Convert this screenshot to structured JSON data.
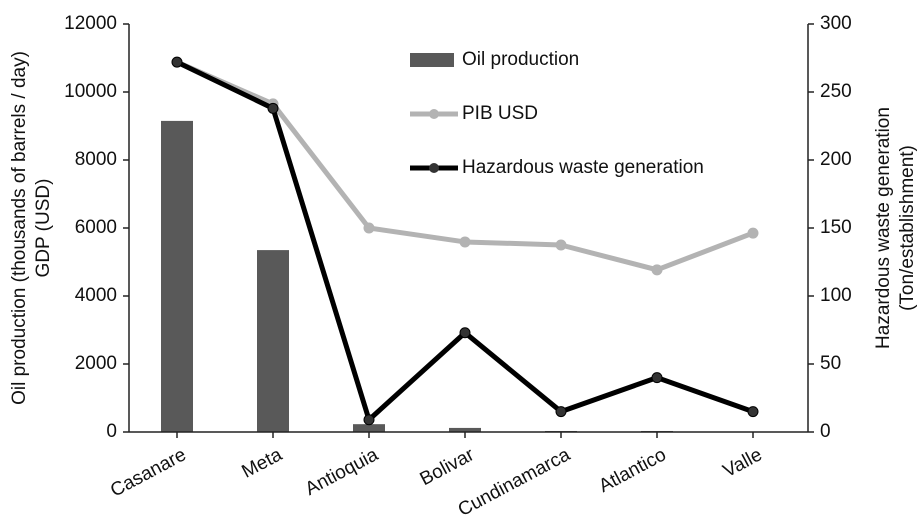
{
  "chart_data": {
    "type": "bar_line",
    "categories": [
      "Casanare",
      "Meta",
      "Antioquia",
      "Bolivar",
      "Cundinamarca",
      "Atlantico",
      "Valle"
    ],
    "y_label_lines": [
      "Oil production (thousands of barrels / day)",
      "GDP (USD)"
    ],
    "y2_label_lines": [
      "Hazardous waste generation",
      "(Ton/establishment)"
    ],
    "ylim": [
      0,
      12000
    ],
    "yticks": [
      0,
      2000,
      4000,
      6000,
      8000,
      10000,
      12000
    ],
    "y2lim": [
      0,
      300
    ],
    "y2ticks": [
      0,
      50,
      100,
      150,
      200,
      250,
      300
    ],
    "series": [
      {
        "name": "Oil production",
        "kind": "bar",
        "color": "#595959",
        "values": [
          9150,
          5350,
          230,
          120,
          30,
          30,
          0
        ]
      },
      {
        "name": "PIB USD",
        "kind": "line",
        "color": "#b3b3b3",
        "values": [
          10880,
          9650,
          6000,
          5590,
          5500,
          4770,
          5850
        ]
      },
      {
        "name": "Hazardous waste generation",
        "kind": "line",
        "color": "#000000",
        "axis": "y2",
        "values": [
          272,
          238,
          9,
          73,
          15,
          40,
          15
        ]
      }
    ],
    "legend": "top"
  }
}
